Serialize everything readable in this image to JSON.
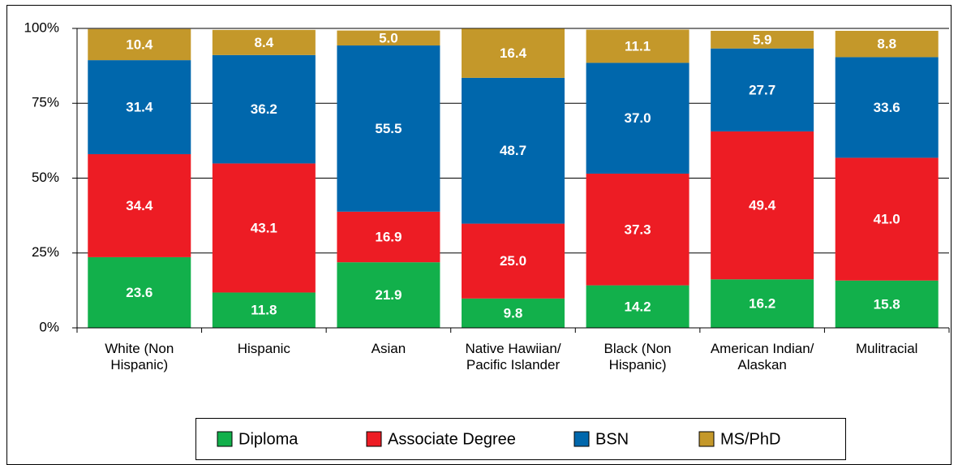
{
  "chart_data": {
    "type": "stacked_bar",
    "categories": [
      "White (Non Hispanic)",
      "Hispanic",
      "Asian",
      "Native Hawiian/ Pacific Islander",
      "Black (Non Hispanic)",
      "American Indian/ Alaskan",
      "Mulitracial"
    ],
    "series": [
      {
        "name": "Diploma",
        "color": "#12b04b",
        "values": [
          23.6,
          11.8,
          21.9,
          9.8,
          14.2,
          16.2,
          15.8
        ],
        "value_labels": [
          "23.6",
          "11.8",
          "21.9",
          "9.8",
          "14.2",
          "16.2",
          "15.8"
        ]
      },
      {
        "name": "Associate Degree",
        "color": "#ed1c24",
        "values": [
          34.4,
          43.1,
          16.9,
          25.0,
          37.3,
          49.4,
          41.0
        ],
        "value_labels": [
          "34.4",
          "43.1",
          "16.9",
          "25.0",
          "37.3",
          "49.4",
          "41.0"
        ]
      },
      {
        "name": "BSN",
        "color": "#0067ac",
        "values": [
          31.4,
          36.2,
          55.5,
          48.7,
          37.0,
          27.7,
          33.6
        ],
        "value_labels": [
          "31.4",
          "36.2",
          "55.5",
          "48.7",
          "37.0",
          "27.7",
          "33.6"
        ]
      },
      {
        "name": "MS/PhD",
        "color": "#c4982a",
        "values": [
          10.4,
          8.4,
          5.0,
          16.4,
          11.1,
          5.9,
          8.8
        ],
        "value_labels": [
          "10.4",
          "8.4",
          "5.0",
          "16.4",
          "11.1",
          "5.9",
          "8.8"
        ]
      }
    ],
    "ylim": [
      0,
      100
    ],
    "yticks": [
      {
        "value": 0,
        "label": "0%"
      },
      {
        "value": 25,
        "label": "25%"
      },
      {
        "value": 50,
        "label": "50%"
      },
      {
        "value": 75,
        "label": "75%"
      },
      {
        "value": 100,
        "label": "100%"
      }
    ],
    "grid": true,
    "legend": "bottom"
  }
}
